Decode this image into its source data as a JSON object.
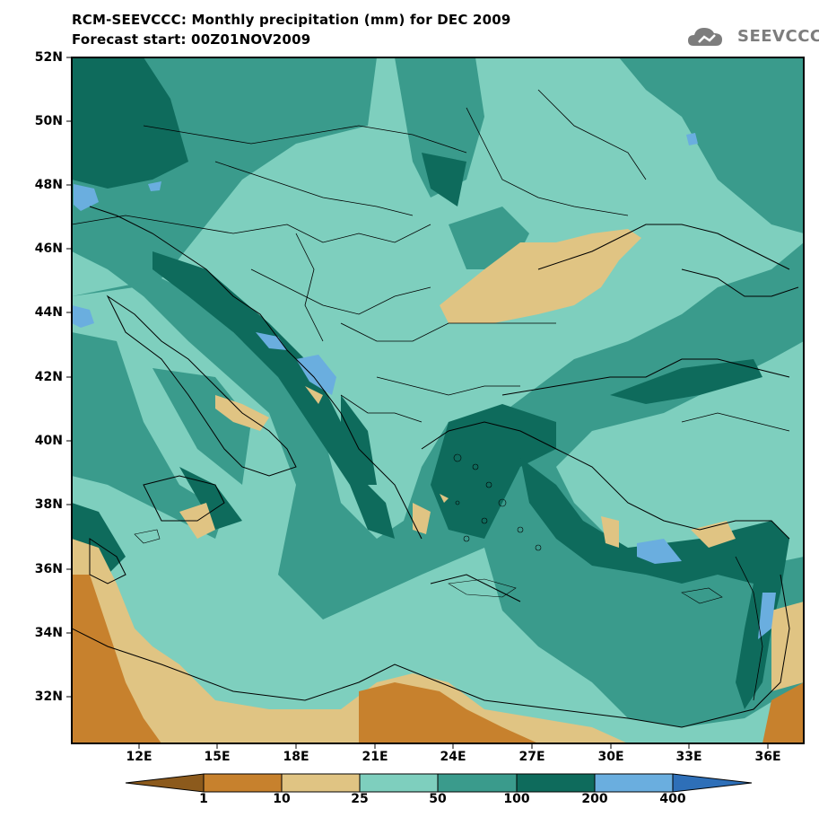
{
  "header": {
    "title_line1": "RCM-SEEVCCC: Monthly precipitation (mm) for DEC 2009",
    "title_line2": "Forecast start: 00Z01NOV2009",
    "logo_text": "SEEVCCC",
    "logo_icon": "cloud-icon"
  },
  "map": {
    "lat_labels": [
      "52N",
      "50N",
      "48N",
      "46N",
      "44N",
      "42N",
      "40N",
      "38N",
      "36N",
      "34N",
      "32N"
    ],
    "lon_labels": [
      "12E",
      "15E",
      "18E",
      "21E",
      "24E",
      "27E",
      "30E",
      "33E",
      "36E"
    ],
    "background_class_color": "#7ecfbe"
  },
  "colorbar": {
    "thresholds": [
      "1",
      "10",
      "25",
      "50",
      "100",
      "200",
      "400"
    ],
    "colors": [
      "#8c5a1c",
      "#c7812d",
      "#e0c483",
      "#7ecfbe",
      "#3a9b8c",
      "#0e6b5c",
      "#6aaedf",
      "#2e6fb8"
    ]
  }
}
